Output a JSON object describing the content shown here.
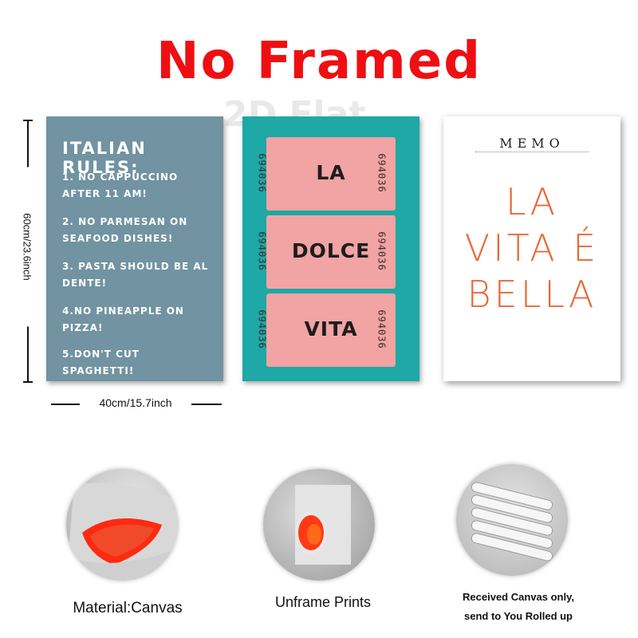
{
  "headline": "No Framed",
  "watermark": "2D Flat",
  "dimensions": {
    "height": "60cm/23.6inch",
    "width": "40cm/15.7inch"
  },
  "poster_rules": {
    "title": "ITALIAN RULES:",
    "rules": [
      "1. No cappuccino after 11 am!",
      "2. No parmesan on seafood dishes!",
      "3. Pasta should be al dente!",
      "4.No pineapple on pizza!",
      "5.Don't cut spaghetti!"
    ],
    "background": "#7193a2"
  },
  "poster_tickets": {
    "background": "#1ea8a6",
    "ticket_color": "#f2a3a3",
    "serial": "694036",
    "tickets": [
      {
        "word": "LA"
      },
      {
        "word": "DOLCE"
      },
      {
        "word": "VITA"
      }
    ]
  },
  "poster_memo": {
    "title": "MEMO",
    "lines": [
      "LA",
      "VITA É",
      "BELLA"
    ],
    "text_color": "#e86a3a"
  },
  "features": [
    {
      "caption": "Material:Canvas",
      "icon": "canvas-roll-icon"
    },
    {
      "caption": "Unframe  Prints",
      "icon": "rolled-print-icon"
    },
    {
      "caption_lines": [
        "Received Canvas only,",
        "send to You Rolled up"
      ],
      "icon": "rolled-tubes-icon"
    }
  ],
  "colors": {
    "headline": "#ef0f12"
  }
}
